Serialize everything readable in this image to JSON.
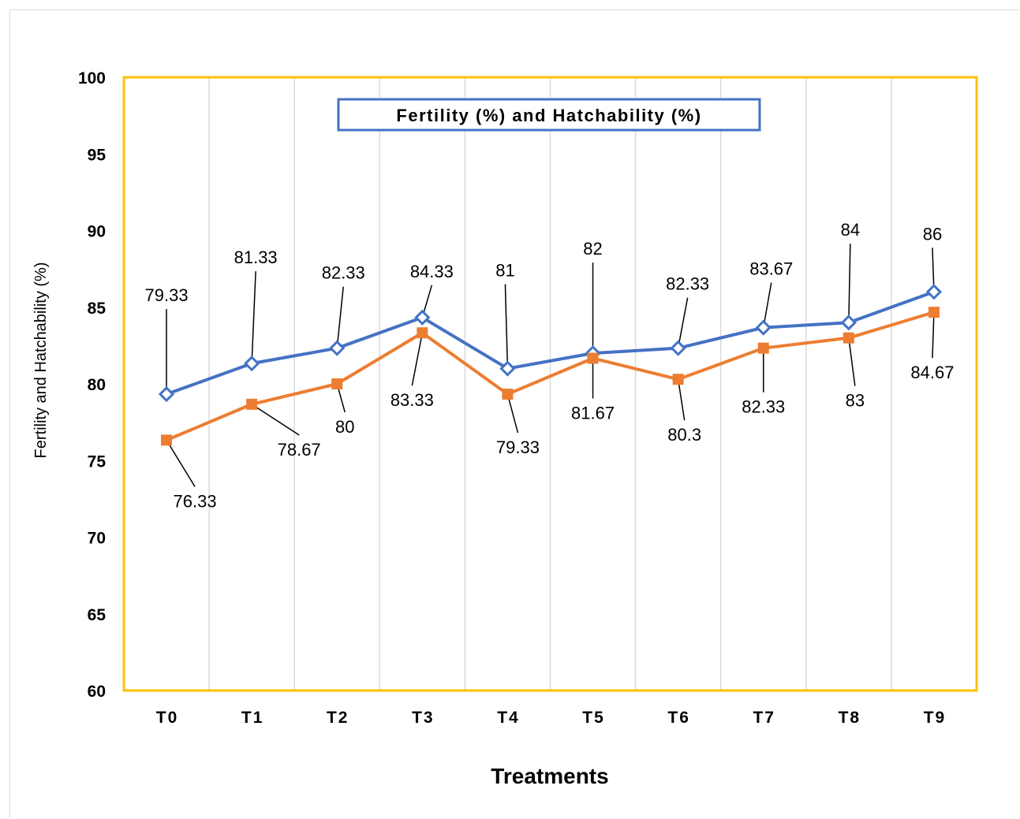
{
  "chart_data": {
    "type": "line",
    "title": "",
    "xlabel": "Treatments",
    "ylabel": "Fertility and Hatchability (%)",
    "ylim": [
      60,
      100
    ],
    "yticks": [
      60,
      65,
      70,
      75,
      80,
      85,
      90,
      95,
      100
    ],
    "grid": "vertical",
    "legend_text": "Fertility (%) and Hatchability (%)",
    "legend_position": "top-center",
    "categories": [
      "T0",
      "T1",
      "T2",
      "T3",
      "T4",
      "T5",
      "T6",
      "T7",
      "T8",
      "T9"
    ],
    "series": [
      {
        "color": "#4472C4",
        "marker": "diamond-open",
        "values": [
          79.33,
          81.33,
          82.33,
          84.33,
          81,
          82,
          82.33,
          83.67,
          84,
          86
        ],
        "labels": [
          "79.33",
          "81.33",
          "82.33",
          "84.33",
          "81",
          "82",
          "82.33",
          "83.67",
          "84",
          "86"
        ]
      },
      {
        "color": "#ED7D31",
        "marker": "square",
        "values": [
          76.33,
          78.67,
          80,
          83.33,
          79.33,
          81.67,
          80.3,
          82.33,
          83,
          84.67
        ],
        "labels": [
          "76.33",
          "78.67",
          "80",
          "83.33",
          "79.33",
          "81.67",
          "80.3",
          "82.33",
          "83",
          "84.67"
        ]
      }
    ],
    "plot_border_color": "#FFC000",
    "legend_border_color": "#4472C4"
  }
}
